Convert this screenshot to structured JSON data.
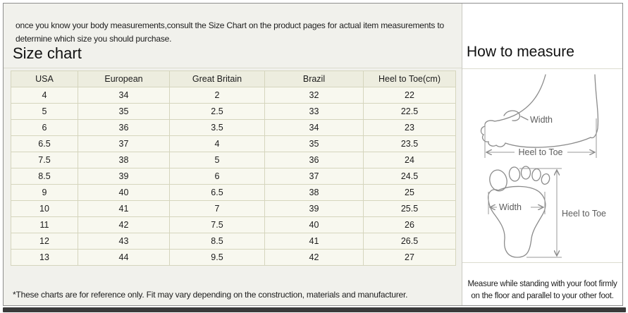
{
  "intro": "once you know your body measurements,consult the Size Chart on the product pages for actual item measurements to determine which size you should purchase.",
  "left_section": {
    "title": "Size chart",
    "footnote": "*These charts are for reference only. Fit may vary depending on the construction, materials and manufacturer."
  },
  "size_table": {
    "columns": [
      "USA",
      "European",
      "Great Britain",
      "Brazil",
      "Heel to Toe(cm)"
    ],
    "rows": [
      [
        "4",
        "34",
        "2",
        "32",
        "22"
      ],
      [
        "5",
        "35",
        "2.5",
        "33",
        "22.5"
      ],
      [
        "6",
        "36",
        "3.5",
        "34",
        "23"
      ],
      [
        "6.5",
        "37",
        "4",
        "35",
        "23.5"
      ],
      [
        "7.5",
        "38",
        "5",
        "36",
        "24"
      ],
      [
        "8.5",
        "39",
        "6",
        "37",
        "24.5"
      ],
      [
        "9",
        "40",
        "6.5",
        "38",
        "25"
      ],
      [
        "10",
        "41",
        "7",
        "39",
        "25.5"
      ],
      [
        "11",
        "42",
        "7.5",
        "40",
        "26"
      ],
      [
        "12",
        "43",
        "8.5",
        "41",
        "26.5"
      ],
      [
        "13",
        "44",
        "9.5",
        "42",
        "27"
      ]
    ]
  },
  "right_section": {
    "title": "How to measure",
    "note": "Measure while standing with your foot firmly on the floor and parallel to your other foot.",
    "side_diagram": {
      "width_label": "Width",
      "heel_to_toe_label": "Heel to Toe"
    },
    "top_diagram": {
      "width_label": "Width",
      "heel_to_toe_label": "Heel to Toe"
    }
  },
  "colors": {
    "frame-border": "#8e8e8e",
    "panel-bg": "#f1f1ec",
    "table-border": "#d5d5bd",
    "header-bg": "#ededdf",
    "cell-bg": "#f8f8ef",
    "divider": "#c9c9c2",
    "divider-soft": "#dcdccf",
    "bottom-bar": "#3a3a3a",
    "text": "#1c1c1c",
    "muted": "#5d5d5d",
    "sketch": "#8b8b8b"
  }
}
